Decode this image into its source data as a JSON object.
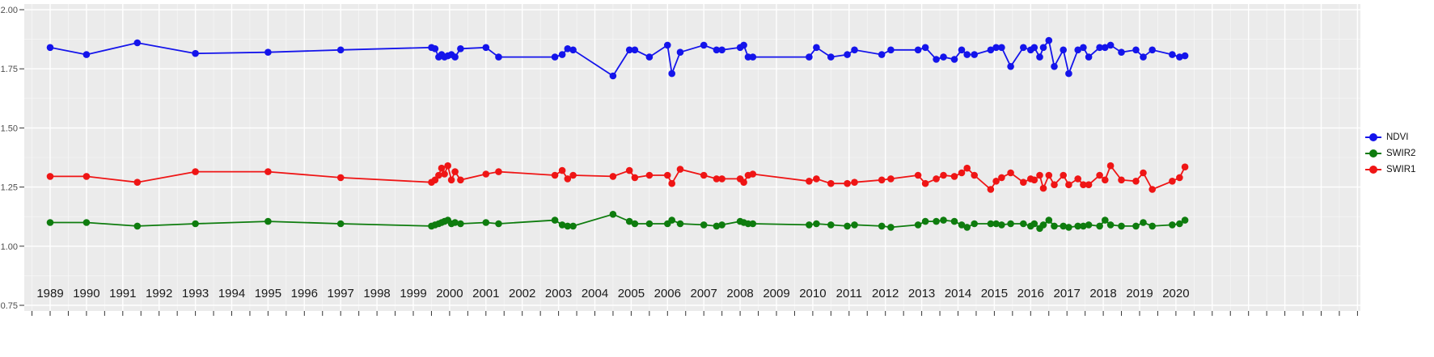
{
  "colors": {
    "panel_bg": "#ebebeb",
    "grid_major": "#ffffff",
    "grid_minor": "#f7f7f7",
    "axis_text": "#4d4d4d",
    "x_label_text": "#1a1a1a",
    "tick": "#333333",
    "ndvi": "#1414eb",
    "swir2": "#0e7c0e",
    "swir1": "#ef1515"
  },
  "legend": {
    "items": [
      {
        "label": "NDVI",
        "color": "#1414eb"
      },
      {
        "label": "SWIR2",
        "color": "#0e7c0e"
      },
      {
        "label": "SWIR1",
        "color": "#ef1515"
      }
    ]
  },
  "chart_data": {
    "type": "line",
    "title": "",
    "xlabel": "",
    "ylabel": "",
    "grid": true,
    "legend_position": "right",
    "xlim": [
      1988.3,
      2025.1
    ],
    "ylim": [
      0.73,
      2.02
    ],
    "x_ticks": [
      1989,
      1990,
      1991,
      1992,
      1993,
      1994,
      1995,
      1996,
      1997,
      1998,
      1999,
      2000,
      2001,
      2002,
      2003,
      2004,
      2005,
      2006,
      2007,
      2008,
      2009,
      2010,
      2011,
      2012,
      2013,
      2014,
      2015,
      2016,
      2017,
      2018,
      2019,
      2020
    ],
    "y_ticks": [
      0.75,
      1.0,
      1.25,
      1.5,
      1.75,
      2.0
    ],
    "y_tick_labels": [
      "0.75",
      "1.00",
      "1.25",
      "1.50",
      "1.75",
      "2.00"
    ],
    "x": [
      1989.0,
      1990.0,
      1991.4,
      1993.0,
      1995.0,
      1997.0,
      1999.5,
      1999.6,
      1999.7,
      1999.78,
      1999.86,
      1999.95,
      2000.05,
      2000.15,
      2000.3,
      2001.0,
      2001.35,
      2002.9,
      2003.1,
      2003.25,
      2003.4,
      2004.5,
      2004.95,
      2005.1,
      2005.5,
      2006.0,
      2006.12,
      2006.35,
      2007.0,
      2007.35,
      2007.5,
      2008.0,
      2008.1,
      2008.22,
      2008.35,
      2009.9,
      2010.1,
      2010.5,
      2010.95,
      2011.15,
      2011.9,
      2012.15,
      2012.9,
      2013.1,
      2013.4,
      2013.6,
      2013.9,
      2014.1,
      2014.25,
      2014.45,
      2014.9,
      2015.05,
      2015.2,
      2015.45,
      2015.8,
      2016.0,
      2016.1,
      2016.25,
      2016.35,
      2016.5,
      2016.65,
      2016.9,
      2017.05,
      2017.3,
      2017.45,
      2017.6,
      2017.9,
      2018.05,
      2018.2,
      2018.5,
      2018.9,
      2019.1,
      2019.35,
      2019.9,
      2020.1,
      2020.25
    ],
    "series": [
      {
        "name": "NDVI",
        "color": "#1414eb",
        "values": [
          1.84,
          1.81,
          1.86,
          1.815,
          1.82,
          1.83,
          1.84,
          1.835,
          1.8,
          1.81,
          1.8,
          1.805,
          1.81,
          1.8,
          1.835,
          1.84,
          1.8,
          1.8,
          1.81,
          1.835,
          1.83,
          1.72,
          1.83,
          1.83,
          1.8,
          1.85,
          1.73,
          1.82,
          1.85,
          1.83,
          1.83,
          1.84,
          1.85,
          1.8,
          1.8,
          1.8,
          1.84,
          1.8,
          1.81,
          1.83,
          1.81,
          1.83,
          1.83,
          1.84,
          1.79,
          1.8,
          1.79,
          1.83,
          1.81,
          1.81,
          1.83,
          1.84,
          1.84,
          1.76,
          1.84,
          1.83,
          1.84,
          1.8,
          1.84,
          1.87,
          1.76,
          1.83,
          1.73,
          1.83,
          1.84,
          1.8,
          1.84,
          1.84,
          1.85,
          1.82,
          1.83,
          1.8,
          1.83,
          1.81,
          1.8,
          1.805
        ]
      },
      {
        "name": "SWIR2",
        "color": "#0e7c0e",
        "values": [
          1.1,
          1.1,
          1.085,
          1.095,
          1.105,
          1.095,
          1.085,
          1.09,
          1.095,
          1.1,
          1.105,
          1.11,
          1.095,
          1.1,
          1.095,
          1.1,
          1.095,
          1.11,
          1.09,
          1.085,
          1.085,
          1.135,
          1.105,
          1.095,
          1.095,
          1.095,
          1.11,
          1.095,
          1.09,
          1.085,
          1.09,
          1.105,
          1.1,
          1.095,
          1.095,
          1.09,
          1.095,
          1.09,
          1.085,
          1.09,
          1.085,
          1.08,
          1.09,
          1.105,
          1.105,
          1.11,
          1.105,
          1.09,
          1.08,
          1.095,
          1.095,
          1.095,
          1.09,
          1.095,
          1.095,
          1.085,
          1.095,
          1.075,
          1.09,
          1.11,
          1.085,
          1.085,
          1.08,
          1.085,
          1.085,
          1.09,
          1.085,
          1.11,
          1.09,
          1.085,
          1.085,
          1.1,
          1.085,
          1.09,
          1.095,
          1.11
        ]
      },
      {
        "name": "SWIR1",
        "color": "#ef1515",
        "values": [
          1.295,
          1.295,
          1.27,
          1.315,
          1.315,
          1.29,
          1.27,
          1.28,
          1.3,
          1.33,
          1.305,
          1.34,
          1.28,
          1.315,
          1.28,
          1.305,
          1.315,
          1.3,
          1.32,
          1.285,
          1.3,
          1.295,
          1.32,
          1.29,
          1.3,
          1.3,
          1.265,
          1.325,
          1.3,
          1.285,
          1.285,
          1.285,
          1.27,
          1.3,
          1.305,
          1.275,
          1.285,
          1.265,
          1.265,
          1.27,
          1.28,
          1.285,
          1.3,
          1.265,
          1.285,
          1.3,
          1.295,
          1.31,
          1.33,
          1.3,
          1.24,
          1.275,
          1.29,
          1.31,
          1.27,
          1.285,
          1.28,
          1.3,
          1.245,
          1.3,
          1.26,
          1.3,
          1.26,
          1.285,
          1.26,
          1.26,
          1.3,
          1.28,
          1.34,
          1.28,
          1.275,
          1.31,
          1.24,
          1.275,
          1.29,
          1.335
        ]
      }
    ]
  }
}
